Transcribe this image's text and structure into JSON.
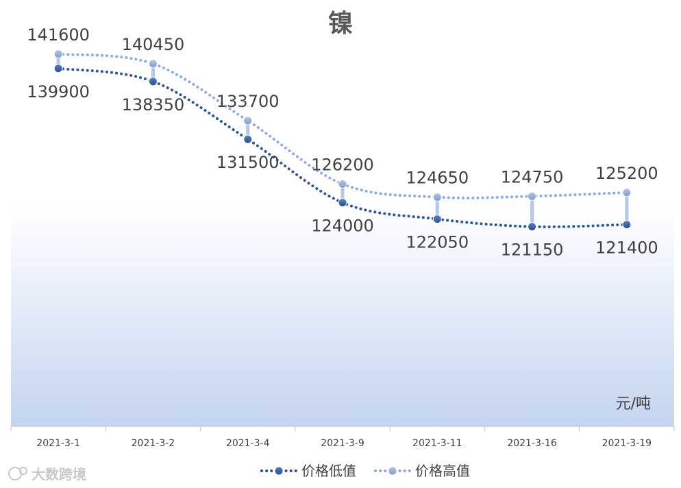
{
  "chart_data": {
    "type": "line",
    "title": "镍",
    "unit_label": "元/吨",
    "categories": [
      "2021-3-1",
      "2021-3-2",
      "2021-3-4",
      "2021-3-9",
      "2021-3-11",
      "2021-3-16",
      "2021-3-19"
    ],
    "series": [
      {
        "name": "价格低值",
        "values": [
          139900,
          138350,
          131500,
          124000,
          122050,
          121150,
          121400
        ],
        "color": "#2f5597"
      },
      {
        "name": "价格高值",
        "values": [
          141600,
          140450,
          133700,
          126200,
          124650,
          124750,
          125200
        ],
        "color": "#8faadc"
      }
    ],
    "ylim": [
      97500,
      148000
    ],
    "grid": false,
    "legend_position": "bottom",
    "high_low_lines": true
  },
  "watermark": {
    "icon": "sun-logo-icon",
    "text": "大数跨境"
  }
}
